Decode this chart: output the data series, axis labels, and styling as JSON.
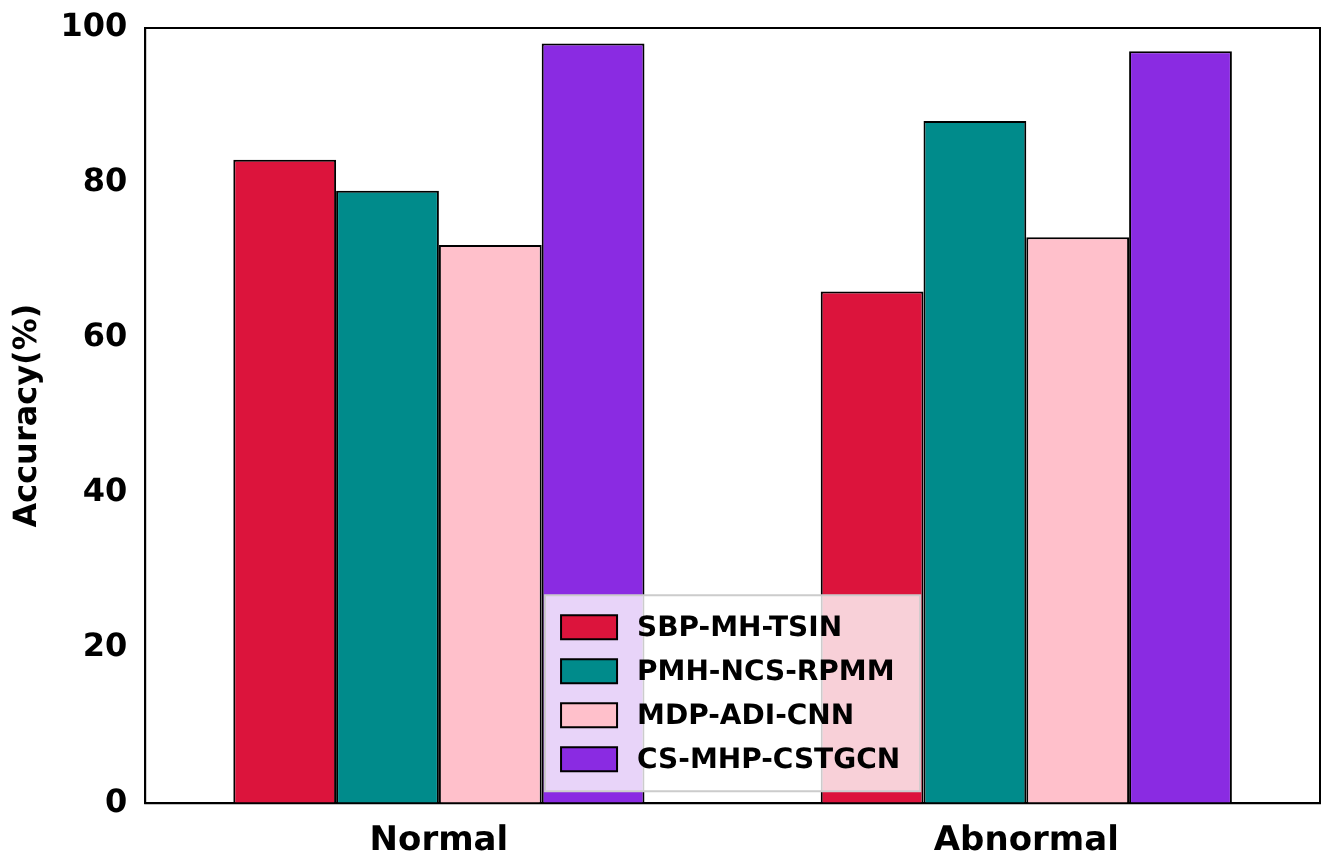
{
  "chart_data": {
    "type": "bar",
    "ylabel": "Accuracy(%)",
    "categories": [
      "Normal",
      "Abnormal"
    ],
    "series": [
      {
        "name": "SBP-MH-TSIN",
        "color": "#dc143c",
        "values": [
          83,
          66
        ]
      },
      {
        "name": "PMH-NCS-RPMM",
        "color": "#008b8b",
        "values": [
          79,
          88
        ]
      },
      {
        "name": "MDP-ADI-CNN",
        "color": "#ffc0cb",
        "values": [
          72,
          73
        ]
      },
      {
        "name": "CS-MHP-CSTGCN",
        "color": "#8a2be2",
        "values": [
          98,
          97
        ]
      }
    ],
    "ylim": [
      0,
      100
    ],
    "yticks": [
      0,
      20,
      40,
      60,
      80,
      100
    ],
    "grid": false,
    "legend": "bottom"
  }
}
